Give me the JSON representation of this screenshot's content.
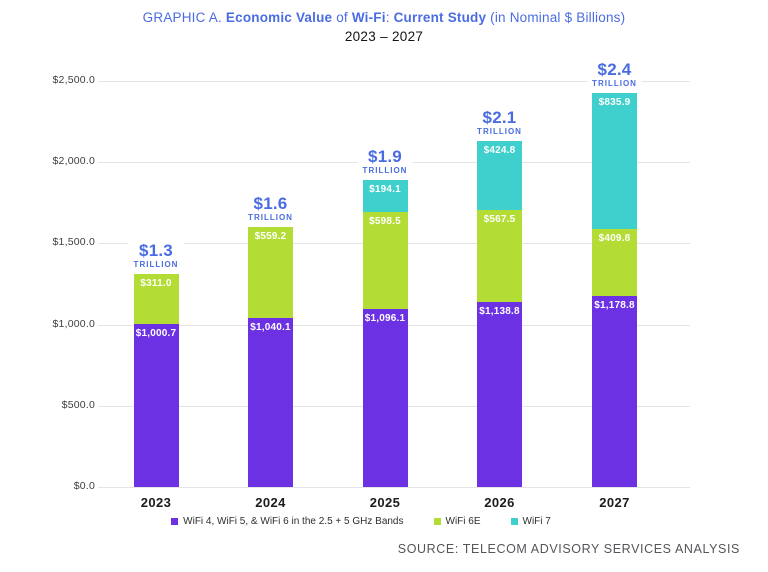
{
  "title": {
    "parts": [
      "GRAPHIC A. ",
      "Economic Value",
      " of ",
      "Wi-Fi",
      ": ",
      "Current Study",
      " (in Nominal $ Billions)"
    ]
  },
  "subtitle": "2023 – 2027",
  "source": "SOURCE: TELECOM ADVISORY SERVICES ANALYSIS",
  "colors": {
    "title_blue": "#4A6CE3",
    "purple": "#6C31E3",
    "green": "#B3DC34",
    "teal": "#3FCFCC",
    "gridline": "#E4E4E7"
  },
  "chart_data": {
    "type": "bar",
    "stacked": true,
    "title": "GRAPHIC A. Economic Value of Wi-Fi: Current Study (in Nominal $ Billions)",
    "subtitle": "2023 – 2027",
    "categories": [
      "2023",
      "2024",
      "2025",
      "2026",
      "2027"
    ],
    "series": [
      {
        "name": "WiFi 4, WiFi 5, & WiFi 6 in the 2.5 + 5 GHz Bands",
        "color_key": "purple",
        "values": [
          1000.7,
          1040.1,
          1096.1,
          1138.8,
          1178.8
        ],
        "labels": [
          "$1,000.7",
          "$1,040.1",
          "$1,096.1",
          "$1,138.8",
          "$1,178.8"
        ]
      },
      {
        "name": "WiFi 6E",
        "color_key": "green",
        "values": [
          311.0,
          559.2,
          598.5,
          567.5,
          409.8
        ],
        "labels": [
          "$311.0",
          "$559.2",
          "$598.5",
          "$567.5",
          "$409.8"
        ]
      },
      {
        "name": "WiFi 7",
        "color_key": "teal",
        "values": [
          0,
          0,
          194.1,
          424.8,
          835.9
        ],
        "labels": [
          "",
          "",
          "$194.1",
          "$424.8",
          "$835.9"
        ]
      }
    ],
    "totals": [
      {
        "value": "$1.3",
        "unit": "TRILLION"
      },
      {
        "value": "$1.6",
        "unit": "TRILLION"
      },
      {
        "value": "$1.9",
        "unit": "TRILLION"
      },
      {
        "value": "$2.1",
        "unit": "TRILLION"
      },
      {
        "value": "$2.4",
        "unit": "TRILLION"
      }
    ],
    "yticks": [
      "$2,500.0",
      "$2,000.0",
      "$1,500.0",
      "$1,000.0",
      "$500.0",
      "$0.0"
    ],
    "ytick_values": [
      2500,
      2000,
      1500,
      1000,
      500,
      0
    ],
    "ylim": [
      0,
      2500
    ],
    "xlabel": "",
    "ylabel": "",
    "grid": true,
    "legend_position": "bottom"
  }
}
